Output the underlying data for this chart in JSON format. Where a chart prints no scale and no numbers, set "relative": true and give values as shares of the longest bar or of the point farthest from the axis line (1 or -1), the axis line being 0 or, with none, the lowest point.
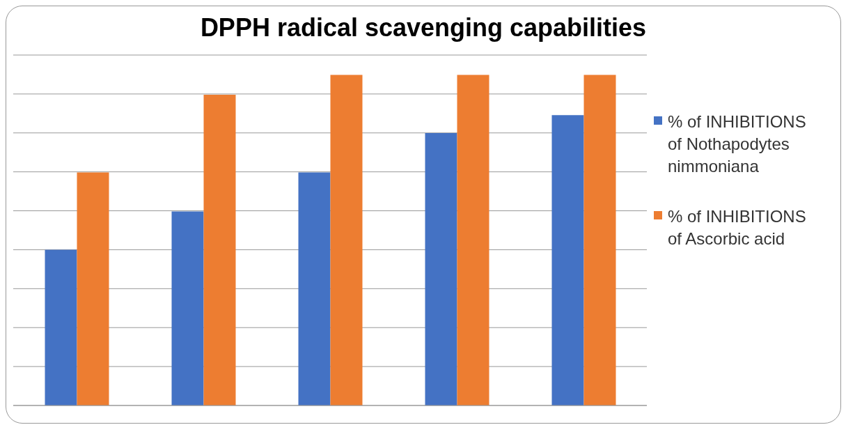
{
  "chart_data": {
    "type": "bar",
    "title": "DPPH radical scavenging capabilities",
    "relative": true,
    "categories": [
      null,
      null,
      null,
      null,
      null
    ],
    "series": [
      {
        "name": "% of INHIBITIONS  of Nothapodytes nimmoniana",
        "color": "#4472c4",
        "values": [
          0.471,
          0.587,
          0.705,
          0.824,
          0.878
        ]
      },
      {
        "name": "% of INHIBITIONS  of Ascorbic acid",
        "color": "#ed7d31",
        "values": [
          0.705,
          0.94,
          1,
          1,
          1
        ]
      }
    ],
    "grid": "y",
    "legend": "right"
  }
}
